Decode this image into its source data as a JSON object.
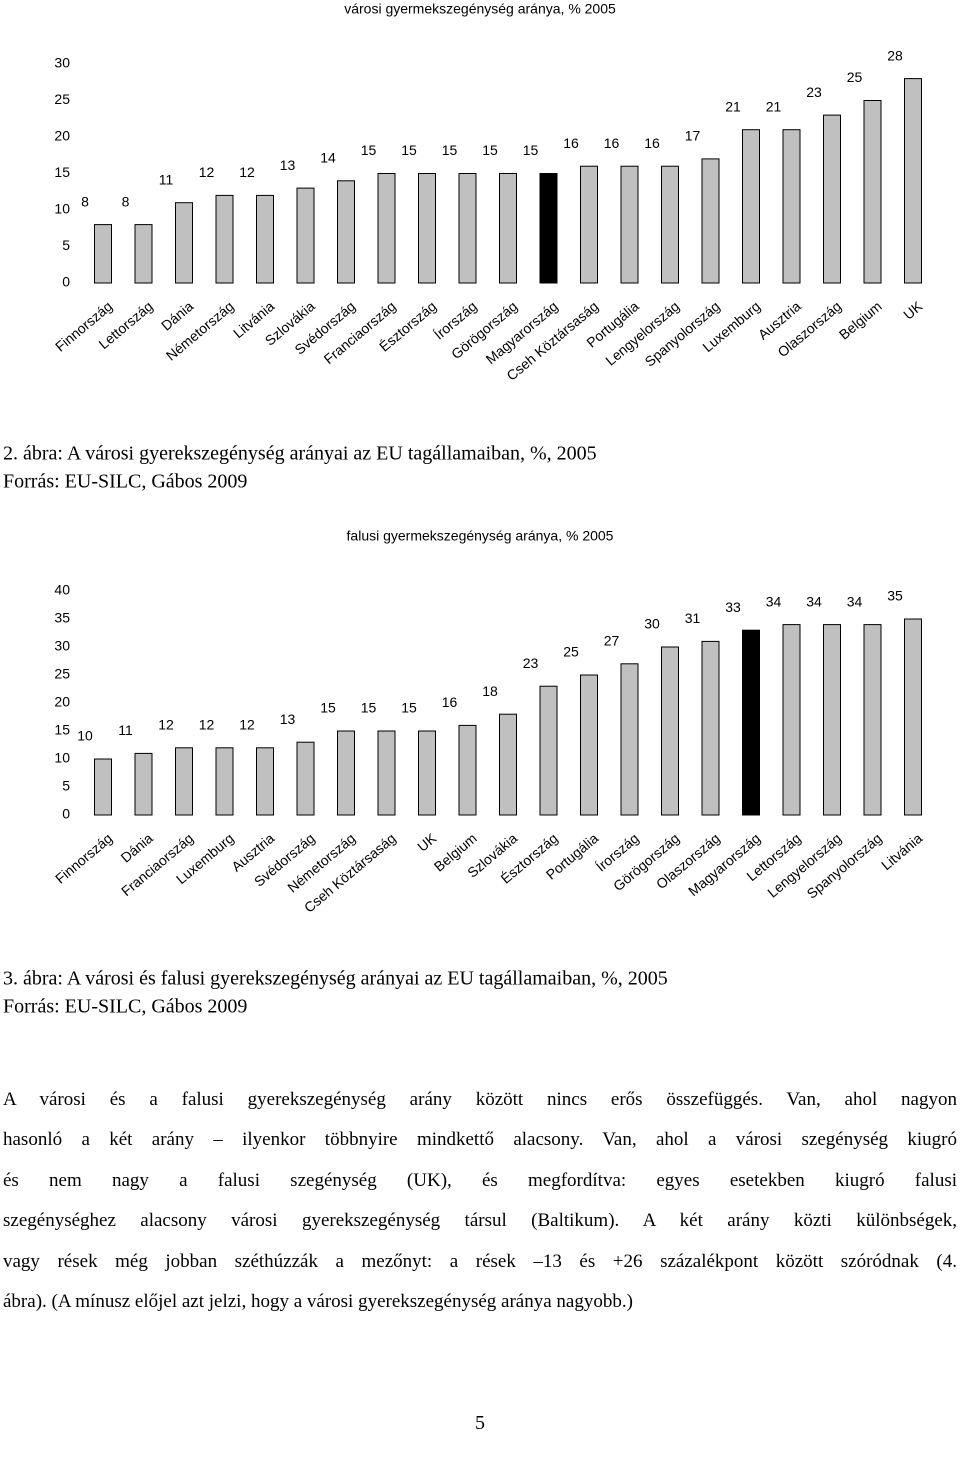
{
  "chart_data": [
    {
      "type": "bar",
      "title": "városi gyermekszegénység aránya, % 2005",
      "categories": [
        "Finnország",
        "Lettország",
        "Dánia",
        "Németország",
        "Litvánia",
        "Szlovákia",
        "Svédország",
        "Franciaország",
        "Észtország",
        "Írország",
        "Görögország",
        "Magyarország",
        "Cseh Köztársaság",
        "Portugália",
        "Lengyelország",
        "Spanyolország",
        "Luxemburg",
        "Ausztria",
        "Olaszország",
        "Belgium",
        "UK"
      ],
      "values": [
        8,
        8,
        11,
        12,
        12,
        13,
        14,
        15,
        15,
        15,
        15,
        15,
        16,
        16,
        16,
        17,
        21,
        21,
        23,
        25,
        28
      ],
      "colors": [
        "#c0c0c0",
        "#c0c0c0",
        "#c0c0c0",
        "#c0c0c0",
        "#c0c0c0",
        "#c0c0c0",
        "#c0c0c0",
        "#c0c0c0",
        "#c0c0c0",
        "#c0c0c0",
        "#c0c0c0",
        "#000000",
        "#c0c0c0",
        "#c0c0c0",
        "#c0c0c0",
        "#c0c0c0",
        "#c0c0c0",
        "#c0c0c0",
        "#c0c0c0",
        "#c0c0c0",
        "#c0c0c0"
      ],
      "ylim": [
        0,
        30
      ],
      "yticks": [
        0,
        5,
        10,
        15,
        20,
        25,
        30
      ],
      "grid": false
    },
    {
      "type": "bar",
      "title": "falusi gyermekszegénység aránya, % 2005",
      "categories": [
        "Finnország",
        "Dánia",
        "Franciaország",
        "Luxemburg",
        "Ausztria",
        "Svédország",
        "Németország",
        "Cseh Köztársaság",
        "UK",
        "Belgium",
        "Szlovákia",
        "Észtország",
        "Portugália",
        "Írország",
        "Görögország",
        "Olaszország",
        "Magyarország",
        "Lettország",
        "Lengyelország",
        "Spanyolország",
        "Litvánia"
      ],
      "values": [
        10,
        11,
        12,
        12,
        12,
        13,
        15,
        15,
        15,
        16,
        18,
        23,
        25,
        27,
        30,
        31,
        33,
        34,
        34,
        34,
        35
      ],
      "colors": [
        "#c0c0c0",
        "#c0c0c0",
        "#c0c0c0",
        "#c0c0c0",
        "#c0c0c0",
        "#c0c0c0",
        "#c0c0c0",
        "#c0c0c0",
        "#c0c0c0",
        "#c0c0c0",
        "#c0c0c0",
        "#c0c0c0",
        "#c0c0c0",
        "#c0c0c0",
        "#c0c0c0",
        "#c0c0c0",
        "#000000",
        "#c0c0c0",
        "#c0c0c0",
        "#c0c0c0",
        "#c0c0c0"
      ],
      "ylim": [
        0,
        40
      ],
      "yticks": [
        0,
        5,
        10,
        15,
        20,
        25,
        30,
        35,
        40
      ],
      "grid": false
    }
  ],
  "captions": [
    {
      "figure": "2. ábra: A városi gyerekszegénység arányai az EU tagállamaiban, %, 2005",
      "source": "Forrás: EU-SILC, Gábos 2009"
    },
    {
      "figure": "3. ábra: A városi és falusi gyerekszegénység arányai az EU tagállamaiban, %, 2005",
      "source": "Forrás: EU-SILC, Gábos 2009"
    }
  ],
  "paragraph": [
    "A városi és a falusi gyerekszegénység arány között nincs erős összefüggés. Van, ahol nagyon",
    "hasonló a két arány – ilyenkor többnyire mindkettő alacsony. Van, ahol a városi szegénység kiugró",
    "és nem nagy a falusi szegénység (UK), és megfordítva: egyes esetekben kiugró falusi",
    "szegénységhez alacsony városi gyerekszegénység társul (Baltikum). A két arány közti különbségek,",
    "vagy rések még jobban széthúzzák a mezőnyt: a rések –13 és +26 százalékpont között szóródnak (4.",
    "ábra). (A mínusz előjel azt jelzi, hogy a városi gyerekszegénység aránya nagyobb.)"
  ],
  "page_number": "5"
}
